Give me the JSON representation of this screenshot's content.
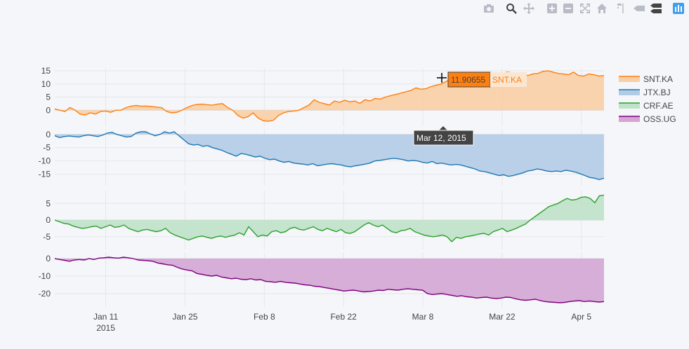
{
  "modebar": {
    "buttons": [
      "camera-icon",
      "zoom-icon",
      "pan-icon",
      "zoom-in-icon",
      "zoom-out-icon",
      "autoscale-icon",
      "home-icon",
      "spike-lines-icon",
      "hover-closest-icon",
      "hover-compare-icon",
      "plotly-logo-icon"
    ]
  },
  "hover": {
    "value": "11.90655",
    "series": "SNT.KA",
    "date": "Mar 12, 2015"
  },
  "chart_data": {
    "type": "area",
    "x_range": [
      "2015-01-02",
      "2015-04-09"
    ],
    "x_ticks": [
      {
        "date": "2015-01-11",
        "label": "Jan 11",
        "sublabel": "2015"
      },
      {
        "date": "2015-01-25",
        "label": "Jan 25",
        "sublabel": ""
      },
      {
        "date": "2015-02-08",
        "label": "Feb 8",
        "sublabel": ""
      },
      {
        "date": "2015-02-22",
        "label": "Feb 22",
        "sublabel": ""
      },
      {
        "date": "2015-03-08",
        "label": "Mar 8",
        "sublabel": ""
      },
      {
        "date": "2015-03-22",
        "label": "Mar 22",
        "sublabel": ""
      },
      {
        "date": "2015-04-05",
        "label": "Apr 5",
        "sublabel": ""
      }
    ],
    "grid": true,
    "legend_position": "right",
    "series": [
      {
        "name": "SNT.KA",
        "color": "#ff7f0e",
        "fill": "#f8cfa4",
        "ylim": [
          -5,
          15
        ],
        "yticks": [
          0,
          5,
          10,
          15
        ],
        "values": [
          0.5,
          0,
          -0.5,
          1,
          0,
          -1.5,
          -1.8,
          -1,
          -1.5,
          -0.5,
          -0.3,
          -0.8,
          0,
          0,
          1,
          1.5,
          1.8,
          1.5,
          1.6,
          1.4,
          1.2,
          1,
          -0.5,
          -1,
          -0.8,
          0,
          1,
          1.8,
          2.2,
          2.3,
          2.1,
          1.9,
          2.3,
          2.5,
          1,
          0,
          -2,
          -3,
          -2.5,
          -1,
          -3,
          -4,
          -4.2,
          -3.8,
          -2,
          -1,
          -0.5,
          -0.3,
          0,
          1,
          2,
          4,
          3,
          2.5,
          2,
          3.5,
          3,
          3.8,
          3.2,
          3.5,
          2.6,
          4,
          3.5,
          4.5,
          4.2,
          5,
          5.5,
          6,
          6.5,
          7,
          7.5,
          8.5,
          8,
          8.2,
          9,
          9.5,
          10,
          11,
          11.9,
          12,
          11,
          11.8,
          13,
          12.5,
          13,
          12.8,
          13.2,
          12.8,
          14,
          14.5,
          14.2,
          13.5,
          14,
          13.2,
          13.8,
          14,
          14.8,
          15,
          14.5,
          14,
          13.8,
          13.5,
          14.5,
          13.2,
          13,
          13.8,
          13.5,
          13,
          13.2
        ]
      },
      {
        "name": "JTX.BJ",
        "color": "#1f77b4",
        "fill": "#b3cce6",
        "ylim": [
          -18,
          1
        ],
        "yticks": [
          -15,
          -10,
          -5,
          0
        ],
        "values": [
          -0.5,
          -1.2,
          -0.8,
          -0.6,
          -0.8,
          -1,
          -0.5,
          -0.2,
          -0.5,
          -0.8,
          -0.3,
          0.5,
          0.8,
          0,
          -0.5,
          -1,
          -0.8,
          0.5,
          1,
          1,
          0.2,
          -0.5,
          0,
          1,
          0.5,
          1,
          -0.5,
          -2,
          -3.5,
          -4,
          -3.8,
          -4.5,
          -4.2,
          -5,
          -5.5,
          -6,
          -6.8,
          -7.5,
          -8.2,
          -7.2,
          -7.5,
          -8,
          -8.5,
          -8.2,
          -9,
          -9.5,
          -9.3,
          -10,
          -10.5,
          -10.2,
          -10.8,
          -11,
          -11.2,
          -11.5,
          -11,
          -11.8,
          -11.5,
          -11.2,
          -11,
          -11.3,
          -11.5,
          -12,
          -12.2,
          -11.8,
          -11.5,
          -11.2,
          -10.8,
          -10,
          -9.8,
          -9.5,
          -9.2,
          -9,
          -9.2,
          -9.5,
          -10,
          -9.8,
          -10,
          -10.5,
          -10.8,
          -10.2,
          -11,
          -10.8,
          -11.2,
          -11.5,
          -11.3,
          -11.5,
          -12,
          -12.5,
          -13,
          -13.8,
          -14,
          -14.5,
          -15,
          -15.5,
          -15.2,
          -15.8,
          -15.5,
          -15,
          -14.5,
          -13.8,
          -13.5,
          -13,
          -13.3,
          -13.8,
          -14,
          -13.8,
          -14,
          -13.5,
          -13.8,
          -14.2,
          -14.8,
          -15.5,
          -16.2,
          -16.5,
          -17,
          -16.5
        ]
      },
      {
        "name": "CRF.AE",
        "color": "#2ca02c",
        "fill": "#bfe2c8",
        "ylim": [
          -8,
          8
        ],
        "yticks": [
          -5,
          0,
          5
        ],
        "values": [
          0,
          -0.5,
          -1,
          -1.2,
          -1.8,
          -2.2,
          -2.5,
          -2.3,
          -2,
          -1.8,
          -2.5,
          -2,
          -1.5,
          -2.2,
          -2,
          -1.5,
          -2.5,
          -3,
          -3.5,
          -3,
          -2.8,
          -3.2,
          -3.5,
          -3.2,
          -2.5,
          -3.8,
          -4.5,
          -5,
          -5.5,
          -6,
          -5.5,
          -5,
          -4.8,
          -5.2,
          -5.5,
          -5,
          -4.8,
          -5.2,
          -4.8,
          -4.5,
          -3.8,
          -4.5,
          -2,
          -3.5,
          -5,
          -4.5,
          -4.8,
          -3.5,
          -3.2,
          -3.8,
          -3.5,
          -2.5,
          -2.2,
          -2.8,
          -3,
          -2.5,
          -2,
          -2.8,
          -3.2,
          -2.5,
          -3,
          -3.5,
          -2.8,
          -3.8,
          -4,
          -3.5,
          -2.5,
          -1.5,
          -0.8,
          -1.5,
          -2,
          -1.5,
          -2.5,
          -3.5,
          -3.8,
          -3.2,
          -3,
          -2.5,
          -3.5,
          -4,
          -4.5,
          -4.8,
          -5,
          -4.8,
          -4.5,
          -5,
          -6.5,
          -5.2,
          -5.5,
          -5,
          -4.8,
          -4.5,
          -4.2,
          -4,
          -4.5,
          -3.5,
          -3,
          -2.5,
          -3.5,
          -3,
          -2.5,
          -1.8,
          -1.2,
          0,
          1,
          2,
          3,
          4,
          4.5,
          5,
          5.8,
          6.5,
          6,
          6.2,
          6.8,
          7,
          6.5,
          5.2,
          7.3,
          7.5
        ]
      },
      {
        "name": "OSS.UG",
        "color": "#800080",
        "fill": "#d3a6d3",
        "ylim": [
          -26,
          2
        ],
        "yticks": [
          -20,
          -10,
          0
        ],
        "values": [
          0,
          -0.5,
          -1,
          -1.5,
          -0.8,
          -0.5,
          -0.8,
          0,
          -0.5,
          0.3,
          0.5,
          0.8,
          0.5,
          0.3,
          0.8,
          0.5,
          0,
          -0.8,
          -1,
          -1.2,
          -1.5,
          -2.5,
          -3,
          -3.5,
          -3.8,
          -5,
          -6,
          -6.5,
          -7,
          -8.5,
          -9,
          -9.5,
          -10,
          -9.5,
          -10.5,
          -11,
          -11.5,
          -11.2,
          -11.8,
          -12,
          -11.5,
          -12.2,
          -12,
          -13,
          -13.2,
          -13.5,
          -13,
          -13.5,
          -13.8,
          -14,
          -14.5,
          -15,
          -15.2,
          -15.8,
          -16,
          -16.5,
          -17,
          -17.5,
          -18,
          -18.5,
          -18.2,
          -18,
          -18.5,
          -19,
          -18.8,
          -18.5,
          -18,
          -18.2,
          -17.5,
          -17.8,
          -18,
          -17.5,
          -17.2,
          -17.5,
          -17.8,
          -18,
          -20,
          -20.5,
          -20.2,
          -20,
          -20.5,
          -21,
          -21.5,
          -21.2,
          -21.8,
          -22,
          -22.5,
          -22.2,
          -22,
          -22.5,
          -22.8,
          -22.5,
          -22,
          -22.2,
          -23,
          -23.5,
          -23.8,
          -23.5,
          -23.2,
          -24,
          -24.5,
          -24.8,
          -25,
          -25.2,
          -25,
          -24.5,
          -24.2,
          -24,
          -24.5,
          -24.2,
          -24.5,
          -24.8,
          -24.5
        ]
      }
    ]
  }
}
